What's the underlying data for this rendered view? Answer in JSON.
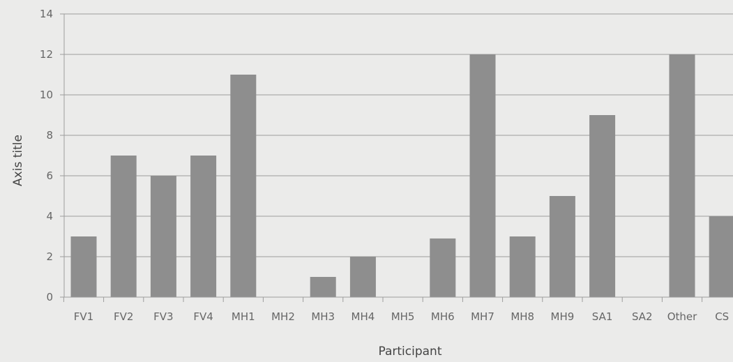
{
  "chart_data": {
    "type": "bar",
    "categories": [
      "FV1",
      "FV2",
      "FV3",
      "FV4",
      "MH1",
      "MH2",
      "MH3",
      "MH4",
      "MH5",
      "MH6",
      "MH7",
      "MH8",
      "MH9",
      "SA1",
      "SA2",
      "Other",
      "CS"
    ],
    "values": [
      3,
      7,
      6,
      7,
      11,
      0,
      1,
      2,
      0,
      2.9,
      12,
      3,
      5,
      9,
      0,
      12,
      4
    ],
    "xlabel": "Participant",
    "ylabel": "Axis title",
    "ylim": [
      0,
      14
    ],
    "yticks": [
      0,
      2,
      4,
      6,
      8,
      10,
      12,
      14
    ],
    "grid": true,
    "colors": {
      "bar": "#8e8e8e",
      "grid": "#9c9c9c",
      "background": "#ebebea"
    }
  }
}
